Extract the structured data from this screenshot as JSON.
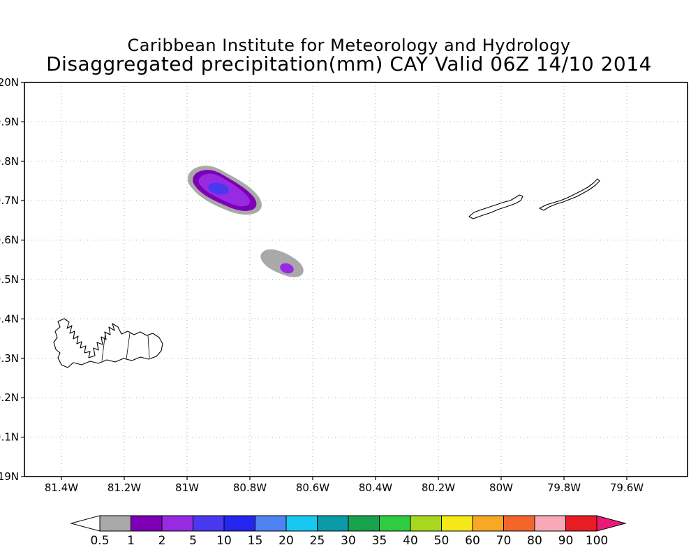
{
  "chart_data": {
    "type": "heatmap",
    "title": "Caribbean Institute for Meteorology and Hydrology",
    "subtitle": "Disaggregated precipitation(mm) CAY Valid 06Z 14/10 2014",
    "variable": "Disaggregated precipitation",
    "units": "mm",
    "region_code": "CAY",
    "valid_time": "06Z 14/10 2014",
    "x_axis": {
      "ticks": [
        "81.4W",
        "81.2W",
        "81W",
        "80.8W",
        "80.6W",
        "80.4W",
        "80.2W",
        "80W",
        "79.8W",
        "79.6W"
      ],
      "grid": "dotted"
    },
    "y_axis": {
      "ticks": [
        "20N",
        "19.9N",
        "19.8N",
        "19.7N",
        "19.6N",
        "19.5N",
        "19.4N",
        "19.3N",
        "19.2N",
        "19.1N",
        "19N"
      ],
      "grid": "dotted"
    },
    "colorbar": {
      "position": "bottom",
      "labels": [
        "0.5",
        "1",
        "2",
        "5",
        "10",
        "15",
        "20",
        "25",
        "30",
        "35",
        "40",
        "50",
        "60",
        "70",
        "80",
        "90",
        "100"
      ],
      "segment_colors": [
        "#a9a9a9",
        "#7d00b4",
        "#982ae2",
        "#4838ee",
        "#2525f0",
        "#4f83f2",
        "#18c8f0",
        "#0a9aa8",
        "#17a24d",
        "#2ecc40",
        "#a8d81e",
        "#f5e818",
        "#f9a825",
        "#f4652a",
        "#f9a8b8",
        "#e81c24"
      ],
      "underflow_color": "#ffffff",
      "overflow_color": "#ec1878",
      "outline_color": "#000000"
    },
    "levels_mm": [
      0.5,
      1,
      2,
      5,
      10,
      15,
      20,
      25,
      30,
      35,
      40,
      50,
      60,
      70,
      80,
      90,
      100
    ],
    "features": [
      {
        "name": "precip-cell-west",
        "center": {
          "lon": "80.90W",
          "lat": "19.73N"
        },
        "bands_mm": [
          "0.5-1",
          "1-2",
          "2-5",
          "5-10"
        ],
        "peak_mm": "5-10"
      },
      {
        "name": "precip-cell-southeast",
        "center": {
          "lon": "80.69W",
          "lat": "19.53N"
        },
        "bands_mm": [
          "0.5-1",
          "2-5"
        ],
        "peak_mm": "2-5"
      }
    ],
    "coastlines": [
      "Grand Cayman",
      "Little Cayman",
      "Cayman Brac"
    ]
  }
}
